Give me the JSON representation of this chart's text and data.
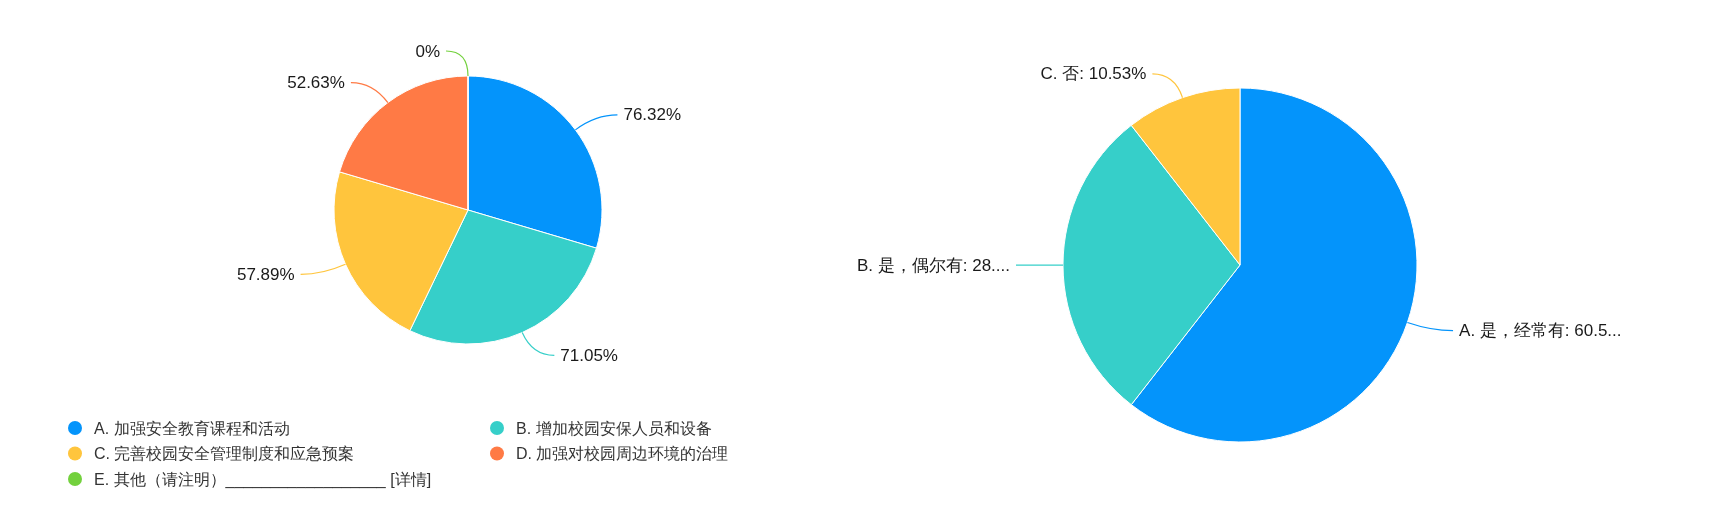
{
  "chart_data": [
    {
      "type": "pie",
      "categories": [
        "A. 加强安全教育课程和活动",
        "B. 增加校园安保人员和设备",
        "C. 完善校园安全管理制度和应急预案",
        "D. 加强对校园周边环境的治理",
        "E. 其他（请注明）__________________ [详情]"
      ],
      "values": [
        76.32,
        71.05,
        57.89,
        52.63,
        0
      ],
      "colors": [
        "#0494fb",
        "#36cfc9",
        "#ffc53d",
        "#ff7a45",
        "#73d13d"
      ],
      "value_labels": [
        "76.32%",
        "71.05%",
        "57.89%",
        "52.63%",
        "0%"
      ],
      "legend": "bottom"
    },
    {
      "type": "pie",
      "categories": [
        "A. 是，经常有",
        "B. 是，偶尔有",
        "C. 否"
      ],
      "values": [
        60.53,
        28.95,
        10.53
      ],
      "colors": [
        "#0494fb",
        "#36cfc9",
        "#ffc53d"
      ],
      "value_labels": [
        "60.5...",
        "28....",
        "10.53%"
      ]
    }
  ]
}
